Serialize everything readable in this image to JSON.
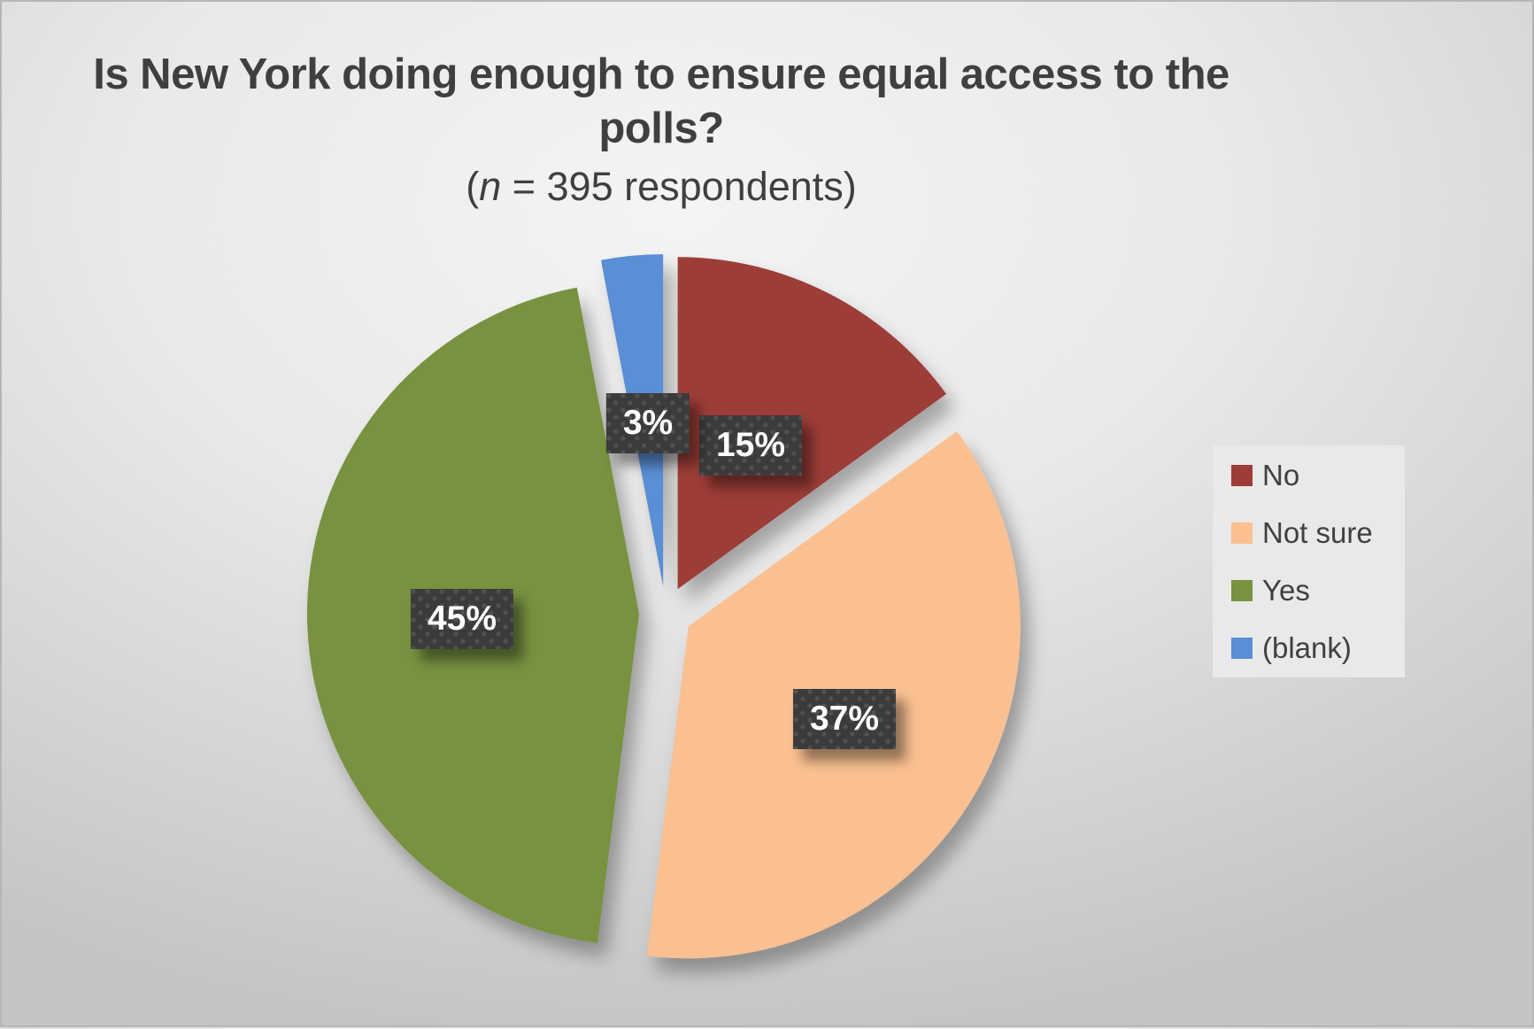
{
  "title": {
    "line1": "Is New York doing enough to ensure equal access to the",
    "line2": "polls?",
    "subtitle_open": "(",
    "subtitle_n": "n",
    "subtitle_rest": " = 395 respondents)"
  },
  "chart_data": {
    "type": "pie",
    "title": "Is New York doing enough to ensure equal access to the polls?",
    "subtitle": "(n = 395 respondents)",
    "respondents": 395,
    "categories": [
      "No",
      "Not sure",
      "Yes",
      "(blank)"
    ],
    "values": [
      15,
      37,
      45,
      3
    ],
    "data_labels": [
      "15%",
      "37%",
      "45%",
      "3%"
    ],
    "colors": [
      "#9D3C38",
      "#FAC091",
      "#78923F",
      "#5A8ED5"
    ],
    "unit": "percent",
    "start_angle_deg": 0,
    "direction": "clockwise",
    "exploded": true,
    "legend_position": "right",
    "label_box": {
      "background": "#3B3B3B",
      "text_color": "#FFFFFF"
    },
    "title_color": "#3F3F3F",
    "legend_background": "#E9E9E9"
  }
}
